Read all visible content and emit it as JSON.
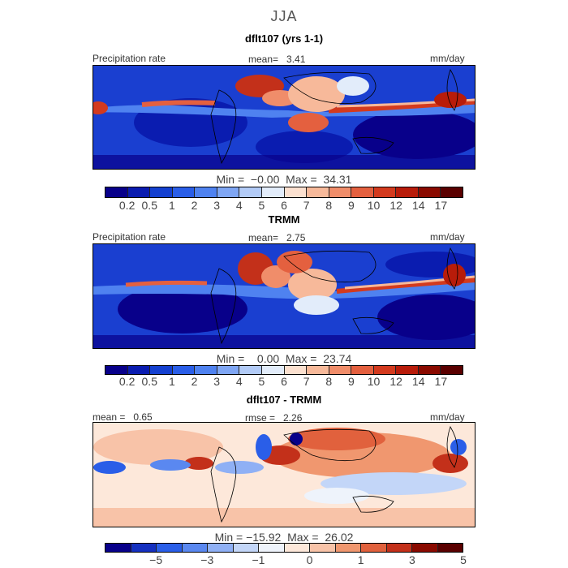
{
  "season": "JJA",
  "panels": [
    {
      "title": "dflt107 (yrs 1-1)",
      "left_label": "Precipitation rate",
      "center_label": "mean=   3.41",
      "right_label": "mm/day",
      "minmax": "Min =  −0.00  Max =  34.31",
      "colorbar": {
        "colors": [
          "#08008a",
          "#0a1cb0",
          "#1440d0",
          "#2a5ee8",
          "#4f82f0",
          "#7fa6f4",
          "#b2cbf7",
          "#e2ecfa",
          "#fbe0cf",
          "#f7b99a",
          "#f08d6a",
          "#e4603f",
          "#d33a1e",
          "#b81c0a",
          "#8a0a00",
          "#5a0000"
        ],
        "tick_labels": [
          "0.2",
          "0.5",
          "1",
          "2",
          "3",
          "4",
          "5",
          "6",
          "7",
          "8",
          "9",
          "10",
          "12",
          "14",
          "17"
        ]
      }
    },
    {
      "title": "TRMM",
      "left_label": "Precipitation rate",
      "center_label": "mean=   2.75",
      "right_label": "mm/day",
      "minmax": "Min =    0.00  Max =  23.74",
      "colorbar": {
        "colors": [
          "#08008a",
          "#0a1cb0",
          "#1440d0",
          "#2a5ee8",
          "#4f82f0",
          "#7fa6f4",
          "#b2cbf7",
          "#e2ecfa",
          "#fbe0cf",
          "#f7b99a",
          "#f08d6a",
          "#e4603f",
          "#d33a1e",
          "#b81c0a",
          "#8a0a00",
          "#5a0000"
        ],
        "tick_labels": [
          "0.2",
          "0.5",
          "1",
          "2",
          "3",
          "4",
          "5",
          "6",
          "7",
          "8",
          "9",
          "10",
          "12",
          "14",
          "17"
        ]
      }
    },
    {
      "title": "dflt107 - TRMM",
      "left_label": "mean =   0.65",
      "center_label": "rmse =   2.26",
      "right_label": "mm/day",
      "minmax": "Min = −15.92  Max =  26.02",
      "colorbar": {
        "colors": [
          "#08008a",
          "#1530c0",
          "#2a5ee8",
          "#5a88f0",
          "#8fb0f5",
          "#c3d6f8",
          "#eef3fb",
          "#fde8da",
          "#f8c3a8",
          "#f0976f",
          "#e1613d",
          "#c3301a",
          "#8a0a00",
          "#5a0000"
        ],
        "tick_labels": [
          "−5",
          "−3",
          "−1",
          "0",
          "1",
          "3",
          "5"
        ]
      }
    }
  ]
}
